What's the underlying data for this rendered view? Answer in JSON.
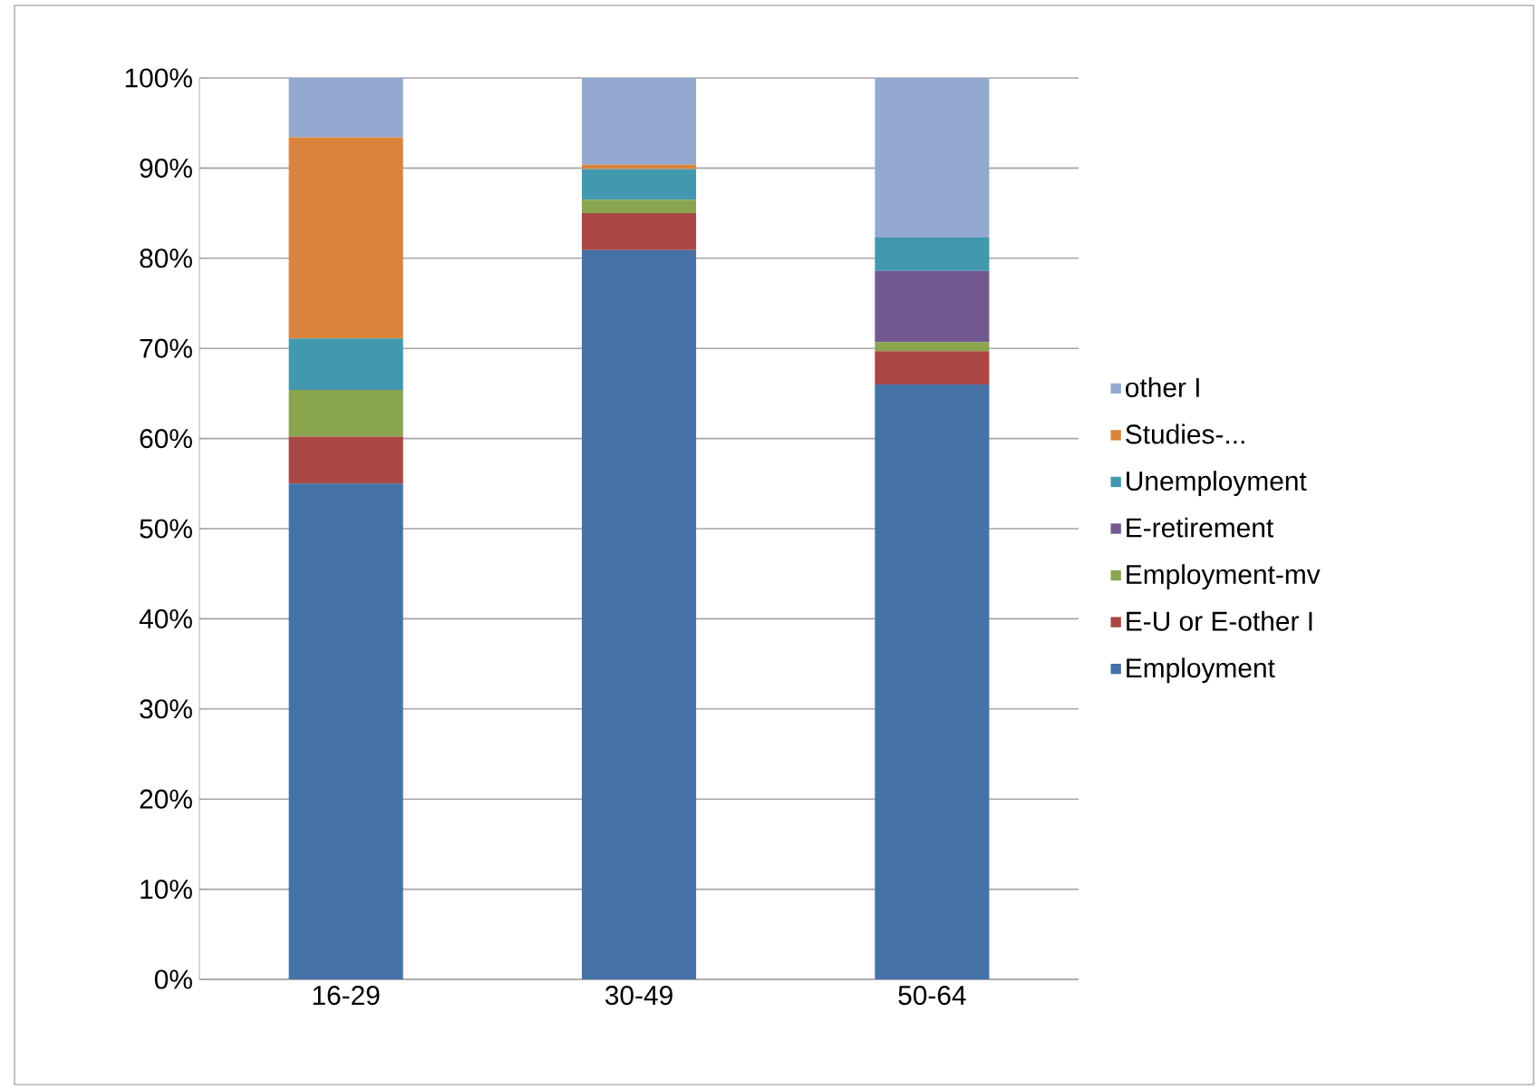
{
  "chart_data": {
    "type": "bar",
    "stacked": true,
    "categories": [
      "16-29",
      "30-49",
      "50-64"
    ],
    "series": [
      {
        "name": "Employment",
        "color": "#4572a7",
        "values": [
          55.0,
          80.9,
          66.0
        ]
      },
      {
        "name": "E-U or E-other I",
        "color": "#aa4643",
        "values": [
          5.2,
          4.1,
          3.7
        ]
      },
      {
        "name": "Employment-mv",
        "color": "#89a54e",
        "values": [
          5.2,
          1.5,
          1.0
        ]
      },
      {
        "name": "E-retirement",
        "color": "#71588f",
        "values": [
          0,
          0,
          7.9
        ]
      },
      {
        "name": "Unemployment",
        "color": "#4198af",
        "values": [
          5.7,
          3.4,
          3.7
        ]
      },
      {
        "name": "Studies-...",
        "color": "#db843d",
        "values": [
          22.3,
          0.5,
          0
        ]
      },
      {
        "name": "other I",
        "color": "#93a9cf",
        "values": [
          6.6,
          9.6,
          17.7
        ]
      }
    ],
    "ylim": [
      0,
      100
    ],
    "yticks": [
      {
        "value": 0,
        "label": "0%"
      },
      {
        "value": 10,
        "label": "10%"
      },
      {
        "value": 20,
        "label": "20%"
      },
      {
        "value": 30,
        "label": "30%"
      },
      {
        "value": 40,
        "label": "40%"
      },
      {
        "value": 50,
        "label": "50%"
      },
      {
        "value": 60,
        "label": "60%"
      },
      {
        "value": 70,
        "label": "70%"
      },
      {
        "value": 80,
        "label": "80%"
      },
      {
        "value": 90,
        "label": "90%"
      },
      {
        "value": 100,
        "label": "100%"
      }
    ],
    "grid": "y",
    "legend": "right"
  }
}
